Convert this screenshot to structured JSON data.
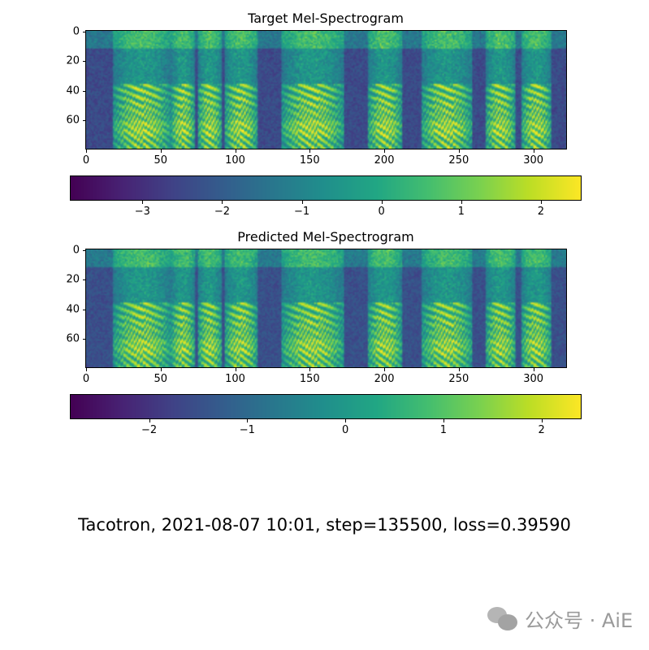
{
  "chart_data": [
    {
      "type": "heatmap",
      "title": "Target Mel-Spectrogram",
      "xlim": [
        0,
        322
      ],
      "ylim": [
        79,
        0
      ],
      "xticks": [
        0,
        50,
        100,
        150,
        200,
        250,
        300
      ],
      "yticks": [
        0,
        20,
        40,
        60
      ],
      "colormap": "viridis",
      "colorbar": {
        "orientation": "horizontal",
        "range": [
          -3.9,
          2.5
        ],
        "ticks": [
          "−3",
          "−2",
          "−1",
          "0",
          "1",
          "2"
        ],
        "tick_values": [
          -3,
          -2,
          -1,
          0,
          1,
          2
        ]
      },
      "segments": [
        [
          18,
          56
        ],
        [
          57,
          72
        ],
        [
          75,
          90
        ],
        [
          93,
          114
        ],
        [
          131,
          172
        ],
        [
          189,
          211
        ],
        [
          225,
          258
        ],
        [
          268,
          287
        ],
        [
          292,
          311
        ]
      ]
    },
    {
      "type": "heatmap",
      "title": "Predicted Mel-Spectrogram",
      "xlim": [
        0,
        322
      ],
      "ylim": [
        79,
        0
      ],
      "xticks": [
        0,
        50,
        100,
        150,
        200,
        250,
        300
      ],
      "yticks": [
        0,
        20,
        40,
        60
      ],
      "colormap": "viridis",
      "colorbar": {
        "orientation": "horizontal",
        "range": [
          -2.8,
          2.4
        ],
        "ticks": [
          "−2",
          "−1",
          "0",
          "1",
          "2"
        ],
        "tick_values": [
          -2,
          -1,
          0,
          1,
          2
        ]
      },
      "segments": [
        [
          18,
          56
        ],
        [
          57,
          72
        ],
        [
          75,
          90
        ],
        [
          93,
          114
        ],
        [
          131,
          172
        ],
        [
          189,
          211
        ],
        [
          225,
          258
        ],
        [
          268,
          287
        ],
        [
          292,
          311
        ]
      ]
    }
  ],
  "caption": "Tacotron, 2021-08-07 10:01, step=135500, loss=0.39590",
  "watermark": "公众号 · AiE",
  "colors": {
    "viridis_low": "#440154",
    "viridis_mid": "#21918c",
    "viridis_high": "#fde725"
  }
}
